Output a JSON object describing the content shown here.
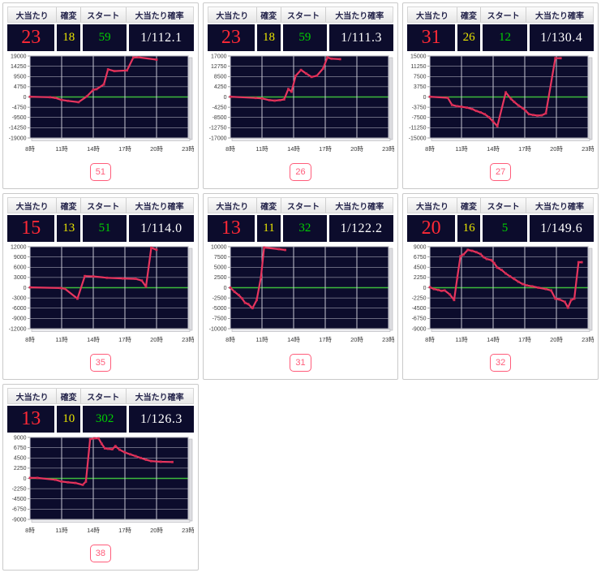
{
  "columns": [
    "大当たり",
    "確変",
    "スタート",
    "大当たり確率"
  ],
  "x_tick_labels": [
    "8時",
    "11時",
    "14時",
    "17時",
    "20時",
    "23時"
  ],
  "colors": {
    "panel_dark_bg": "#0c0c2c",
    "atari_red": "#ff2936",
    "kakuhen_yellow": "#e8e400",
    "start_green": "#00d000",
    "prob_white": "#ffffff",
    "grid_line": "#c4c4cf",
    "zero_line": "#3cb93c",
    "series_line": "#e8365f",
    "marker": "#d62a52",
    "badge_pink": "#ff5c7a",
    "axis_text": "#3a3a3a"
  },
  "panels": [
    {
      "machine": "51",
      "values": {
        "atari": "23",
        "kakuhen": "18",
        "start": "59",
        "prob": "1/112.1"
      },
      "chart_data": {
        "type": "line",
        "x_range": [
          8,
          23
        ],
        "x_tick_hours": [
          8,
          11,
          14,
          17,
          20,
          23
        ],
        "ylim": [
          -19000,
          19000
        ],
        "y_step": 4750,
        "points": [
          [
            8,
            100
          ],
          [
            9.9,
            -100
          ],
          [
            10.4,
            -400
          ],
          [
            11,
            -1400
          ],
          [
            11.6,
            -1800
          ],
          [
            12.6,
            -2400
          ],
          [
            13.4,
            300
          ],
          [
            14,
            3300
          ],
          [
            14.3,
            3600
          ],
          [
            15,
            5800
          ],
          [
            15.4,
            12800
          ],
          [
            16,
            12000
          ],
          [
            17.2,
            12300
          ],
          [
            17.8,
            18300
          ],
          [
            18.3,
            18400
          ],
          [
            20,
            17300
          ]
        ]
      }
    },
    {
      "machine": "26",
      "values": {
        "atari": "23",
        "kakuhen": "18",
        "start": "59",
        "prob": "1/111.3"
      },
      "chart_data": {
        "type": "line",
        "x_range": [
          8,
          23
        ],
        "x_tick_hours": [
          8,
          11,
          14,
          17,
          20,
          23
        ],
        "ylim": [
          -17000,
          17000
        ],
        "y_step": 4250,
        "points": [
          [
            8,
            100
          ],
          [
            10.4,
            -400
          ],
          [
            11,
            -600
          ],
          [
            11.7,
            -1300
          ],
          [
            12.2,
            -1500
          ],
          [
            12.7,
            -1300
          ],
          [
            13.1,
            -1000
          ],
          [
            13.5,
            3300
          ],
          [
            13.8,
            2200
          ],
          [
            14.2,
            8800
          ],
          [
            14.7,
            11200
          ],
          [
            15.2,
            9700
          ],
          [
            15.7,
            8300
          ],
          [
            16.2,
            8800
          ],
          [
            16.8,
            11800
          ],
          [
            17.2,
            16400
          ],
          [
            17.6,
            15900
          ],
          [
            18.4,
            15700
          ]
        ]
      }
    },
    {
      "machine": "27",
      "values": {
        "atari": "31",
        "kakuhen": "26",
        "start": "12",
        "prob": "1/130.4"
      },
      "chart_data": {
        "type": "line",
        "x_range": [
          8,
          23
        ],
        "x_tick_hours": [
          8,
          11,
          14,
          17,
          20,
          23
        ],
        "ylim": [
          -15000,
          15000
        ],
        "y_step": 3750,
        "points": [
          [
            8,
            100
          ],
          [
            9.7,
            -300
          ],
          [
            10.1,
            -2900
          ],
          [
            10.6,
            -3400
          ],
          [
            11,
            -3600
          ],
          [
            11.5,
            -3900
          ],
          [
            12,
            -4400
          ],
          [
            12.4,
            -5100
          ],
          [
            12.8,
            -5600
          ],
          [
            13.2,
            -6300
          ],
          [
            13.6,
            -7400
          ],
          [
            14,
            -9000
          ],
          [
            14.4,
            -10700
          ],
          [
            15.2,
            1700
          ],
          [
            15.7,
            -700
          ],
          [
            16,
            -1800
          ],
          [
            16.4,
            -3100
          ],
          [
            16.8,
            -4100
          ],
          [
            17.1,
            -5100
          ],
          [
            17.4,
            -6300
          ],
          [
            17.8,
            -6600
          ],
          [
            18.2,
            -6800
          ],
          [
            18.6,
            -6700
          ],
          [
            19,
            -6000
          ],
          [
            19.9,
            14200
          ],
          [
            20.4,
            14200
          ]
        ]
      }
    },
    {
      "machine": "35",
      "values": {
        "atari": "15",
        "kakuhen": "13",
        "start": "51",
        "prob": "1/114.0"
      },
      "chart_data": {
        "type": "line",
        "x_range": [
          8,
          23
        ],
        "x_tick_hours": [
          8,
          11,
          14,
          17,
          20,
          23
        ],
        "ylim": [
          -12000,
          12000
        ],
        "y_step": 3000,
        "points": [
          [
            8,
            100
          ],
          [
            10.9,
            -100
          ],
          [
            11.3,
            -300
          ],
          [
            12.5,
            -3200
          ],
          [
            13.2,
            3400
          ],
          [
            14,
            3300
          ],
          [
            15.3,
            2900
          ],
          [
            16.8,
            2700
          ],
          [
            18,
            2600
          ],
          [
            18.6,
            2100
          ],
          [
            19,
            300
          ],
          [
            19.5,
            11700
          ],
          [
            20,
            11100
          ]
        ]
      }
    },
    {
      "machine": "31",
      "values": {
        "atari": "13",
        "kakuhen": "11",
        "start": "32",
        "prob": "1/122.2"
      },
      "chart_data": {
        "type": "line",
        "x_range": [
          8,
          23
        ],
        "x_tick_hours": [
          8,
          11,
          14,
          17,
          20,
          23
        ],
        "ylim": [
          -10000,
          10000
        ],
        "y_step": 2500,
        "points": [
          [
            8,
            0
          ],
          [
            8.4,
            -1000
          ],
          [
            8.8,
            -1800
          ],
          [
            9.1,
            -2600
          ],
          [
            9.4,
            -3700
          ],
          [
            9.7,
            -4000
          ],
          [
            10.1,
            -5000
          ],
          [
            10.5,
            -3000
          ],
          [
            10.9,
            2500
          ],
          [
            11.2,
            9800
          ],
          [
            12.6,
            9400
          ],
          [
            13.2,
            9200
          ]
        ]
      }
    },
    {
      "machine": "32",
      "values": {
        "atari": "20",
        "kakuhen": "16",
        "start": "5",
        "prob": "1/149.6"
      },
      "chart_data": {
        "type": "line",
        "x_range": [
          8,
          23
        ],
        "x_tick_hours": [
          8,
          11,
          14,
          17,
          20,
          23
        ],
        "ylim": [
          -9000,
          9000
        ],
        "y_step": 2250,
        "points": [
          [
            8,
            100
          ],
          [
            8.4,
            -300
          ],
          [
            8.8,
            -500
          ],
          [
            9.1,
            -700
          ],
          [
            9.4,
            -600
          ],
          [
            9.9,
            -1500
          ],
          [
            10.3,
            -2700
          ],
          [
            10.6,
            2200
          ],
          [
            10.9,
            6900
          ],
          [
            11.2,
            7300
          ],
          [
            11.6,
            8300
          ],
          [
            12,
            8100
          ],
          [
            12.4,
            7800
          ],
          [
            12.8,
            7400
          ],
          [
            13.1,
            6700
          ],
          [
            13.4,
            6300
          ],
          [
            13.8,
            6100
          ],
          [
            14.1,
            5400
          ],
          [
            14.4,
            4400
          ],
          [
            14.8,
            3900
          ],
          [
            15.2,
            3100
          ],
          [
            15.6,
            2500
          ],
          [
            16,
            1900
          ],
          [
            16.4,
            1300
          ],
          [
            16.8,
            800
          ],
          [
            17.2,
            500
          ],
          [
            17.7,
            300
          ],
          [
            18.3,
            0
          ],
          [
            19,
            -300
          ],
          [
            19.5,
            -600
          ],
          [
            19.9,
            -2400
          ],
          [
            20.3,
            -2600
          ],
          [
            20.8,
            -3100
          ],
          [
            21.1,
            -4400
          ],
          [
            21.4,
            -2700
          ],
          [
            21.7,
            -2400
          ],
          [
            22.1,
            5600
          ],
          [
            22.4,
            5600
          ]
        ]
      }
    },
    {
      "machine": "38",
      "values": {
        "atari": "13",
        "kakuhen": "10",
        "start": "302",
        "prob": "1/126.3"
      },
      "chart_data": {
        "type": "line",
        "x_range": [
          8,
          23
        ],
        "x_tick_hours": [
          8,
          11,
          14,
          17,
          20,
          23
        ],
        "ylim": [
          -9000,
          9000
        ],
        "y_step": 2250,
        "points": [
          [
            8,
            100
          ],
          [
            8.7,
            100
          ],
          [
            10.4,
            -300
          ],
          [
            11,
            -700
          ],
          [
            11.6,
            -850
          ],
          [
            12.3,
            -1000
          ],
          [
            13,
            -1400
          ],
          [
            13.3,
            -700
          ],
          [
            13.7,
            8600
          ],
          [
            14.1,
            8800
          ],
          [
            14.5,
            8800
          ],
          [
            14.8,
            7600
          ],
          [
            15.1,
            6600
          ],
          [
            15.4,
            6500
          ],
          [
            15.8,
            6400
          ],
          [
            16.1,
            7100
          ],
          [
            16.5,
            6300
          ],
          [
            17,
            5700
          ],
          [
            17.5,
            5300
          ],
          [
            18,
            4900
          ],
          [
            18.5,
            4500
          ],
          [
            19,
            4100
          ],
          [
            19.5,
            3800
          ],
          [
            20.4,
            3650
          ],
          [
            21.5,
            3600
          ]
        ]
      }
    }
  ]
}
